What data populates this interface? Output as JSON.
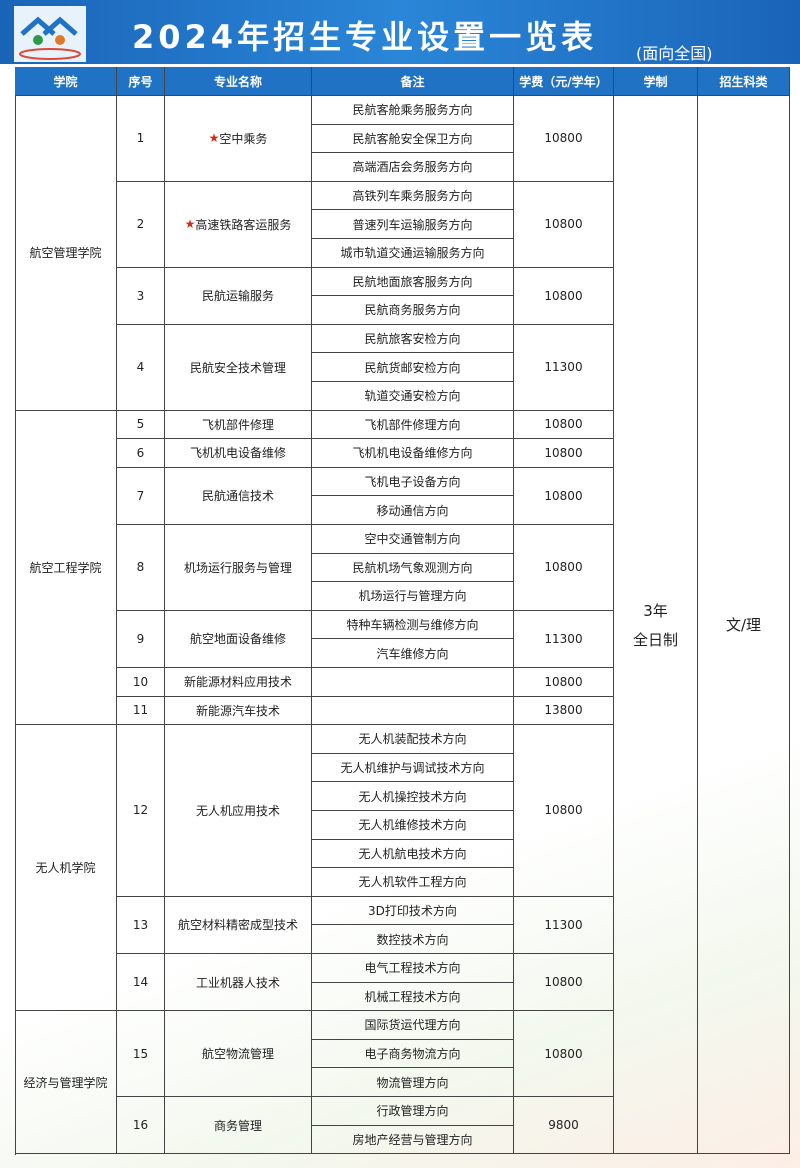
{
  "header": {
    "title": "2024年招生专业设置一览表",
    "subtitle": "(面向全国)"
  },
  "table": {
    "columns": [
      "学院",
      "序号",
      "专业名称",
      "备注",
      "学费（元/学年）",
      "学制",
      "招生科类"
    ],
    "duration": [
      "3年",
      "全日制"
    ],
    "category": "文/理",
    "colleges": [
      {
        "name": "航空管理学院",
        "majors": [
          {
            "no": 1,
            "mark": "★",
            "name": "空中乘务",
            "notes": [
              "民航客舱乘务服务方向",
              "民航客舱安全保卫方向",
              "高端酒店会务服务方向"
            ],
            "fee": 10800
          },
          {
            "no": 2,
            "mark": "★",
            "name": "高速铁路客运服务",
            "notes": [
              "高铁列车乘务服务方向",
              "普速列车运输服务方向",
              "城市轨道交通运输服务方向"
            ],
            "fee": 10800
          },
          {
            "no": 3,
            "name": "民航运输服务",
            "notes": [
              "民航地面旅客服务方向",
              "民航商务服务方向"
            ],
            "fee": 10800
          },
          {
            "no": 4,
            "name": "民航安全技术管理",
            "notes": [
              "民航旅客安检方向",
              "民航货邮安检方向",
              "轨道交通安检方向"
            ],
            "fee": 11300
          }
        ]
      },
      {
        "name": "航空工程学院",
        "majors": [
          {
            "no": 5,
            "name": "飞机部件修理",
            "notes": [
              "飞机部件修理方向"
            ],
            "fee": 10800
          },
          {
            "no": 6,
            "name": "飞机机电设备维修",
            "notes": [
              "飞机机电设备维修方向"
            ],
            "fee": 10800
          },
          {
            "no": 7,
            "name": "民航通信技术",
            "notes": [
              "飞机电子设备方向",
              "移动通信方向"
            ],
            "fee": 10800
          },
          {
            "no": 8,
            "name": "机场运行服务与管理",
            "notes": [
              "空中交通管制方向",
              "民航机场气象观测方向",
              "机场运行与管理方向"
            ],
            "fee": 10800
          },
          {
            "no": 9,
            "name": "航空地面设备维修",
            "notes": [
              "特种车辆检测与维修方向",
              "汽车维修方向"
            ],
            "fee": 11300
          },
          {
            "no": 10,
            "name": "新能源材料应用技术",
            "notes": [],
            "fee": 10800
          },
          {
            "no": 11,
            "name": "新能源汽车技术",
            "notes": [],
            "fee": 13800
          }
        ]
      },
      {
        "name": "无人机学院",
        "majors": [
          {
            "no": 12,
            "name": "无人机应用技术",
            "notes": [
              "无人机装配技术方向",
              "无人机维护与调试技术方向",
              "无人机操控技术方向",
              "无人机维修技术方向",
              "无人机航电技术方向",
              "无人机软件工程方向"
            ],
            "fee": 10800
          },
          {
            "no": 13,
            "name": "航空材料精密成型技术",
            "notes": [
              "3D打印技术方向",
              "数控技术方向"
            ],
            "fee": 11300
          },
          {
            "no": 14,
            "name": "工业机器人技术",
            "notes": [
              "电气工程技术方向",
              "机械工程技术方向"
            ],
            "fee": 10800
          }
        ]
      },
      {
        "name": "经济与管理学院",
        "majors": [
          {
            "no": 15,
            "name": "航空物流管理",
            "notes": [
              "国际货运代理方向",
              "电子商务物流方向",
              "物流管理方向"
            ],
            "fee": 10800
          },
          {
            "no": 16,
            "name": "商务管理",
            "notes": [
              "行政管理方向",
              "房地产经营与管理方向"
            ],
            "fee": 9800
          }
        ]
      }
    ]
  }
}
